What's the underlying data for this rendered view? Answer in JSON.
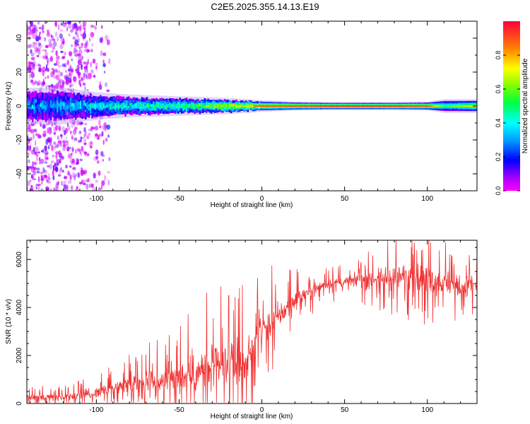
{
  "title": "C2E5.2025.355.14.13.E19",
  "colors": {
    "snr_line": "#f03030",
    "axis": "#000000",
    "background": "#ffffff"
  },
  "chart_data": [
    {
      "type": "heatmap",
      "xlabel": "Height of straight line (km)",
      "ylabel": "Frequency (Hz)",
      "xlim": [
        -142,
        130
      ],
      "ylim": [
        -50,
        50
      ],
      "xticks": [
        -100,
        -50,
        0,
        50,
        100
      ],
      "yticks": [
        -40,
        -20,
        0,
        20,
        40
      ],
      "colorbar": {
        "label": "Normalized spectral amplitude",
        "range": [
          0,
          1
        ],
        "ticks": [
          0.0,
          0.2,
          0.4,
          0.6,
          0.8
        ],
        "colormap": "rainbow"
      },
      "band_amplitude_profile": {
        "x": [
          -140,
          -120,
          -100,
          -80,
          -60,
          -40,
          -20,
          0,
          20,
          40,
          60,
          80,
          100,
          110,
          128
        ],
        "peak_amplitude": [
          0.35,
          0.35,
          0.45,
          0.5,
          0.55,
          0.6,
          0.8,
          0.9,
          0.92,
          0.95,
          0.95,
          0.95,
          0.9,
          0.55,
          0.75
        ],
        "band_halfwidth_hz": [
          8,
          8,
          6,
          5,
          4.5,
          4,
          3.5,
          2.5,
          2,
          1.8,
          1.8,
          1.8,
          2,
          3,
          3
        ]
      },
      "noise_scatter_region": {
        "x": [
          -142,
          -92
        ],
        "freq_spread_hz": 50
      }
    },
    {
      "type": "line",
      "xlabel": "Height of straight line (km)",
      "ylabel": "SNR (10 * v/v)",
      "xlim": [
        -142,
        130
      ],
      "ylim": [
        0,
        6800
      ],
      "xticks": [
        -100,
        -50,
        0,
        50,
        100
      ],
      "yticks": [
        0,
        2000,
        4000,
        6000
      ],
      "trend": {
        "x": [
          -140,
          -120,
          -100,
          -90,
          -80,
          -70,
          -60,
          -50,
          -40,
          -30,
          -20,
          -10,
          -5,
          0,
          10,
          20,
          30,
          40,
          50,
          60,
          70,
          80,
          90,
          100,
          110,
          120,
          130
        ],
        "y": [
          250,
          280,
          420,
          650,
          800,
          900,
          1000,
          1150,
          1350,
          1500,
          1550,
          1700,
          2400,
          3000,
          3600,
          4300,
          4700,
          5000,
          5050,
          5150,
          5200,
          5250,
          5300,
          5200,
          5050,
          4900,
          4900
        ]
      },
      "noise_amplitude": {
        "x": [
          -140,
          -100,
          -60,
          -40,
          -20,
          -5,
          0,
          20,
          50,
          80,
          100,
          130
        ],
        "y": [
          120,
          200,
          500,
          800,
          1000,
          800,
          700,
          350,
          200,
          500,
          600,
          350
        ]
      },
      "notable_peaks": [
        {
          "x": 92,
          "y": 6700
        },
        {
          "x": 115,
          "y": 6150
        },
        {
          "x": -20,
          "y": 4500
        },
        {
          "x": 6,
          "y": 5750
        }
      ]
    }
  ]
}
